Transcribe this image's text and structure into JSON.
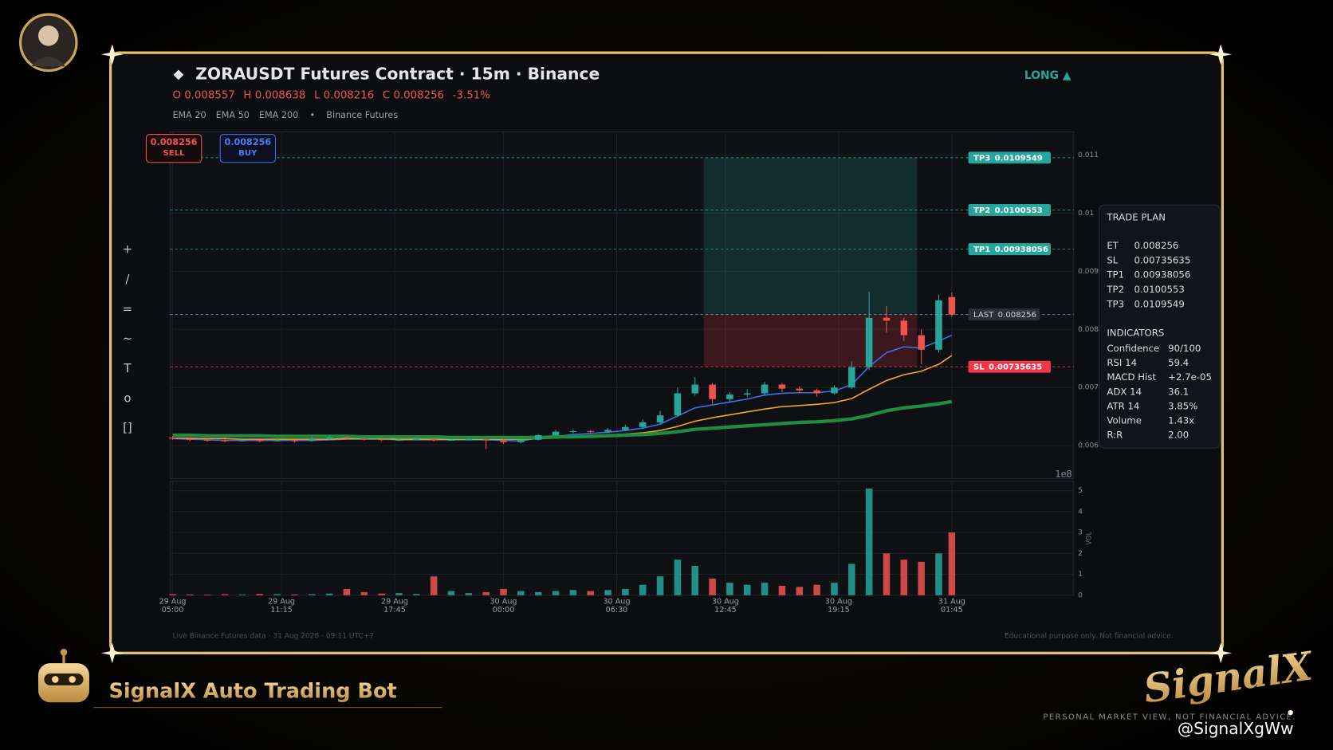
{
  "header": {
    "title": "ZORAUSDT Futures Contract  ·  15m  ·  Binance",
    "position": "LONG ▲",
    "ohlc_labels": [
      "O",
      "H",
      "L",
      "C"
    ],
    "change": "-3.51%",
    "legend_separator": "•",
    "source": "Binance Futures",
    "order_buttons": [
      "SELL",
      "BUY"
    ]
  },
  "toolbar": [
    "+",
    "/",
    "=",
    "~",
    "T",
    "o",
    "[]"
  ],
  "trade_plan": {
    "title": "TRADE PLAN",
    "entry_label": "ET",
    "indicators_title": "INDICATORS",
    "indicators": [
      [
        "Confidence",
        "90/100"
      ],
      [
        "RSI 14",
        "59.4"
      ],
      [
        "MACD Hist",
        "+2.7e-05"
      ],
      [
        "ADX 14",
        "36.1"
      ],
      [
        "ATR 14",
        "3.85%"
      ],
      [
        "Volume",
        "1.43x"
      ],
      [
        "R:R",
        "2.00"
      ]
    ]
  },
  "footer": {
    "left": "Live Binance Futures data  ·  31 Aug 2026  ·  09:11 UTC+7",
    "right": "Educational purpose only. Not financial advice."
  },
  "branding": {
    "bot_name": "SignalX Auto Trading Bot",
    "logo": "SignalX",
    "tagline": "PERSONAL MARKET VIEW, NOT FINANCIAL ADVICE.",
    "watermark": "@SignalXgWw"
  },
  "chart_data": [
    {
      "type": "candlestick",
      "x": [
        0,
        4,
        8,
        12,
        16,
        20,
        24,
        28,
        32,
        36,
        40,
        44,
        48,
        52,
        56,
        60,
        64,
        68,
        72,
        76,
        80,
        84,
        88,
        92,
        96,
        100,
        104,
        108,
        112,
        116,
        120,
        124,
        128,
        132,
        136,
        140,
        144,
        148,
        152,
        156,
        160,
        164,
        168,
        172,
        176,
        179
      ],
      "open": [
        0.00614,
        0.00612,
        0.0061,
        0.00609,
        0.00608,
        0.00609,
        0.00608,
        0.00609,
        0.00608,
        0.00611,
        0.00614,
        0.00612,
        0.00611,
        0.0061,
        0.0061,
        0.00611,
        0.00609,
        0.0061,
        0.00611,
        0.00609,
        0.00606,
        0.0061,
        0.00618,
        0.00624,
        0.00625,
        0.00624,
        0.00627,
        0.00632,
        0.0064,
        0.00652,
        0.0069,
        0.00705,
        0.0068,
        0.00688,
        0.0069,
        0.00705,
        0.00698,
        0.00695,
        0.0069,
        0.007,
        0.00735,
        0.0082,
        0.00815,
        0.0079,
        0.00765,
        0.008557
      ],
      "high": [
        0.00616,
        0.00614,
        0.00612,
        0.00611,
        0.00611,
        0.0061,
        0.00611,
        0.0061,
        0.00616,
        0.00618,
        0.00616,
        0.00614,
        0.00613,
        0.00612,
        0.00613,
        0.00613,
        0.00612,
        0.00613,
        0.00612,
        0.00611,
        0.00612,
        0.0062,
        0.00627,
        0.00628,
        0.00627,
        0.0063,
        0.00636,
        0.00645,
        0.0066,
        0.007,
        0.00718,
        0.00708,
        0.00692,
        0.00697,
        0.0071,
        0.00708,
        0.00702,
        0.00698,
        0.00704,
        0.00745,
        0.00865,
        0.0084,
        0.0082,
        0.008,
        0.0086,
        0.008638
      ],
      "low": [
        0.0061,
        0.00608,
        0.00607,
        0.00606,
        0.00607,
        0.00606,
        0.00607,
        0.00605,
        0.00607,
        0.0061,
        0.0061,
        0.00609,
        0.00608,
        0.00608,
        0.00609,
        0.00607,
        0.00608,
        0.00609,
        0.00594,
        0.00603,
        0.00604,
        0.00609,
        0.00617,
        0.00621,
        0.00621,
        0.00622,
        0.00625,
        0.0063,
        0.00638,
        0.0065,
        0.00686,
        0.00672,
        0.00675,
        0.00684,
        0.00686,
        0.00692,
        0.0069,
        0.00684,
        0.00688,
        0.00698,
        0.0073,
        0.00795,
        0.0078,
        0.0074,
        0.0076,
        0.008216
      ],
      "close": [
        0.00612,
        0.0061,
        0.00609,
        0.00608,
        0.00609,
        0.00608,
        0.00609,
        0.00608,
        0.00611,
        0.00614,
        0.00612,
        0.00611,
        0.0061,
        0.0061,
        0.00611,
        0.00609,
        0.0061,
        0.00611,
        0.00609,
        0.00606,
        0.0061,
        0.00618,
        0.00624,
        0.00625,
        0.00624,
        0.00627,
        0.00632,
        0.0064,
        0.00652,
        0.0069,
        0.00705,
        0.0068,
        0.00688,
        0.0069,
        0.00705,
        0.00698,
        0.00695,
        0.0069,
        0.007,
        0.00735,
        0.0082,
        0.00815,
        0.0079,
        0.00765,
        0.0085,
        0.008256
      ],
      "up_color": "#26a69a",
      "down_color": "#ef5350",
      "series": [
        {
          "name": "EMA 20",
          "color": "#3d6ee8",
          "values": [
            0.00612,
            0.00611,
            0.0061,
            0.00609,
            0.00609,
            0.00609,
            0.00609,
            0.00609,
            0.00609,
            0.0061,
            0.00611,
            0.00611,
            0.00611,
            0.0061,
            0.0061,
            0.0061,
            0.0061,
            0.0061,
            0.0061,
            0.00609,
            0.00608,
            0.00613,
            0.00616,
            0.00619,
            0.00621,
            0.00623,
            0.00626,
            0.0063,
            0.00637,
            0.00651,
            0.00665,
            0.0067,
            0.00675,
            0.0068,
            0.00687,
            0.0069,
            0.00691,
            0.00691,
            0.00694,
            0.00705,
            0.00736,
            0.0076,
            0.0077,
            0.00768,
            0.0078,
            0.0079
          ]
        },
        {
          "name": "EMA 50",
          "color": "#f5a623",
          "values": [
            0.00613,
            0.00613,
            0.00612,
            0.00612,
            0.00611,
            0.00611,
            0.00611,
            0.00611,
            0.00611,
            0.00611,
            0.00612,
            0.00612,
            0.00612,
            0.00611,
            0.00611,
            0.00611,
            0.00611,
            0.00611,
            0.00611,
            0.00611,
            0.00611,
            0.00612,
            0.00613,
            0.00615,
            0.00617,
            0.00618,
            0.0062,
            0.00622,
            0.00626,
            0.00633,
            0.00642,
            0.00648,
            0.00653,
            0.00658,
            0.00663,
            0.00667,
            0.00669,
            0.00671,
            0.00674,
            0.00681,
            0.00697,
            0.00712,
            0.00722,
            0.00728,
            0.0074,
            0.00755
          ]
        },
        {
          "name": "EMA 200",
          "color": "#1e8e3e",
          "values": [
            0.00618,
            0.00618,
            0.00617,
            0.00617,
            0.00617,
            0.00617,
            0.00616,
            0.00616,
            0.00616,
            0.00616,
            0.00616,
            0.00615,
            0.00615,
            0.00615,
            0.00615,
            0.00615,
            0.00614,
            0.00614,
            0.00614,
            0.00614,
            0.00614,
            0.00614,
            0.00615,
            0.00615,
            0.00616,
            0.00617,
            0.00618,
            0.00619,
            0.00621,
            0.00624,
            0.00628,
            0.0063,
            0.00632,
            0.00634,
            0.00636,
            0.00638,
            0.0064,
            0.00641,
            0.00643,
            0.00646,
            0.00652,
            0.0066,
            0.00665,
            0.00668,
            0.00672,
            0.00676
          ]
        }
      ],
      "levels": [
        {
          "name": "TP3",
          "value": 0.0109549,
          "color": "#26a69a"
        },
        {
          "name": "TP2",
          "value": 0.0100553,
          "color": "#26a69a"
        },
        {
          "name": "TP1",
          "value": 0.00938056,
          "color": "#26a69a"
        },
        {
          "name": "LAST",
          "value": 0.008256,
          "color": "#6fa8dc"
        },
        {
          "name": "SL",
          "value": 0.00735635,
          "color": "#f23645"
        }
      ],
      "zone": {
        "x": [
          122,
          171
        ]
      },
      "xlim": [
        -0.6,
        207
      ],
      "ylim": [
        0.00543,
        0.0114
      ],
      "yticks": [
        0.006,
        0.007,
        0.008,
        0.009,
        0.01,
        0.011
      ],
      "offset_label": "1e8",
      "grid": true
    },
    {
      "type": "bar",
      "y_label": "VOL",
      "x": [
        0,
        4,
        8,
        12,
        16,
        20,
        24,
        28,
        32,
        36,
        40,
        44,
        48,
        52,
        56,
        60,
        64,
        68,
        72,
        76,
        80,
        84,
        88,
        92,
        96,
        100,
        104,
        108,
        112,
        116,
        120,
        124,
        128,
        132,
        136,
        140,
        144,
        148,
        152,
        156,
        160,
        164,
        168,
        172,
        176,
        179
      ],
      "values": [
        0.05,
        0.04,
        0.03,
        0.05,
        0.04,
        0.06,
        0.05,
        0.04,
        0.05,
        0.08,
        0.3,
        0.15,
        0.08,
        0.1,
        0.06,
        0.9,
        0.2,
        0.1,
        0.15,
        0.3,
        0.2,
        0.15,
        0.2,
        0.25,
        0.2,
        0.25,
        0.3,
        0.5,
        0.9,
        1.7,
        1.4,
        0.8,
        0.6,
        0.5,
        0.6,
        0.45,
        0.4,
        0.5,
        0.6,
        1.5,
        5.1,
        2.0,
        1.7,
        1.6,
        2.0,
        3.0
      ],
      "xlim": [
        -0.6,
        207
      ],
      "ylim": [
        0,
        5.45
      ],
      "yticks": [
        0,
        1,
        2,
        3,
        4,
        5
      ],
      "xticks": [
        {
          "value": 0,
          "label": "29 Aug\n05:00"
        },
        {
          "value": 25,
          "label": "29 Aug\n11:15"
        },
        {
          "value": 51,
          "label": "29 Aug\n17:45"
        },
        {
          "value": 76,
          "label": "30 Aug\n00:00"
        },
        {
          "value": 102,
          "label": "30 Aug\n06:30"
        },
        {
          "value": 127,
          "label": "30 Aug\n12:45"
        },
        {
          "value": 153,
          "label": "30 Aug\n19:15"
        },
        {
          "value": 179,
          "label": "31 Aug\n01:45"
        }
      ],
      "grid": true
    }
  ]
}
